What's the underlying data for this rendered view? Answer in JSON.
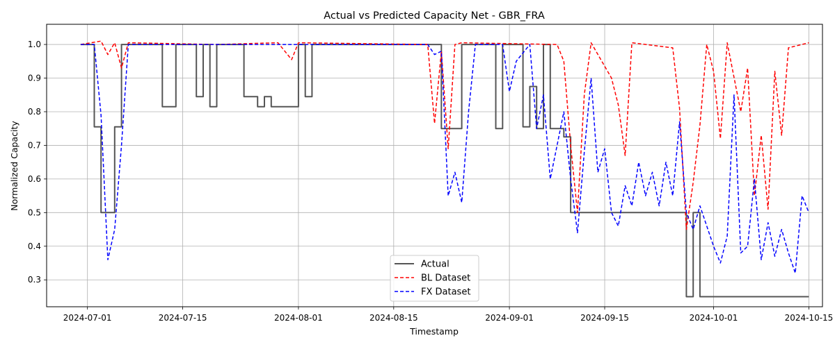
{
  "chart_data": {
    "type": "line",
    "title": "Actual vs Predicted Capacity Net - GBR_FRA",
    "xlabel": "Timestamp",
    "ylabel": "Normalized Capacity",
    "x_type": "date",
    "xlim": [
      "2024-06-25",
      "2024-10-17"
    ],
    "ylim": [
      0.22,
      1.06
    ],
    "x_ticks": [
      "2024-07-01",
      "2024-07-15",
      "2024-08-01",
      "2024-08-15",
      "2024-09-01",
      "2024-09-15",
      "2024-10-01",
      "2024-10-15"
    ],
    "y_ticks": [
      0.3,
      0.4,
      0.5,
      0.6,
      0.7,
      0.8,
      0.9,
      1.0
    ],
    "y_tick_labels": [
      "0.3",
      "0.4",
      "0.5",
      "0.6",
      "0.7",
      "0.8",
      "0.9",
      "1.0"
    ],
    "grid": true,
    "legend_position": "bottom-center",
    "series": [
      {
        "name": "Actual",
        "color": "#555555",
        "style": "solid",
        "step": true,
        "points": [
          [
            "2024-06-30",
            1.0
          ],
          [
            "2024-07-02",
            0.755
          ],
          [
            "2024-07-03",
            0.5
          ],
          [
            "2024-07-04",
            0.5
          ],
          [
            "2024-07-05",
            0.755
          ],
          [
            "2024-07-06",
            1.0
          ],
          [
            "2024-07-12",
            0.815
          ],
          [
            "2024-07-14",
            1.0
          ],
          [
            "2024-07-17",
            0.845
          ],
          [
            "2024-07-18",
            1.0
          ],
          [
            "2024-07-19",
            0.815
          ],
          [
            "2024-07-20",
            1.0
          ],
          [
            "2024-07-24",
            0.845
          ],
          [
            "2024-07-26",
            0.815
          ],
          [
            "2024-07-27",
            0.845
          ],
          [
            "2024-07-28",
            0.815
          ],
          [
            "2024-08-01",
            1.0
          ],
          [
            "2024-08-02",
            0.845
          ],
          [
            "2024-08-03",
            1.0
          ],
          [
            "2024-08-21",
            1.0
          ],
          [
            "2024-08-22",
            0.75
          ],
          [
            "2024-08-25",
            1.0
          ],
          [
            "2024-08-30",
            0.75
          ],
          [
            "2024-08-31",
            1.0
          ],
          [
            "2024-09-03",
            0.755
          ],
          [
            "2024-09-04",
            0.875
          ],
          [
            "2024-09-05",
            0.75
          ],
          [
            "2024-09-06",
            1.0
          ],
          [
            "2024-09-07",
            0.75
          ],
          [
            "2024-09-09",
            0.725
          ],
          [
            "2024-09-10",
            0.5
          ],
          [
            "2024-09-26",
            0.5
          ],
          [
            "2024-09-27",
            0.25
          ],
          [
            "2024-09-28",
            0.5
          ],
          [
            "2024-09-29",
            0.25
          ],
          [
            "2024-10-15",
            0.25
          ]
        ]
      },
      {
        "name": "BL Dataset",
        "color": "#ff0000",
        "style": "dashed",
        "points": [
          [
            "2024-06-30",
            1.0
          ],
          [
            "2024-07-03",
            1.01
          ],
          [
            "2024-07-04",
            0.97
          ],
          [
            "2024-07-05",
            1.005
          ],
          [
            "2024-07-06",
            0.93
          ],
          [
            "2024-07-07",
            1.005
          ],
          [
            "2024-07-20",
            1.0
          ],
          [
            "2024-07-29",
            1.005
          ],
          [
            "2024-07-31",
            0.955
          ],
          [
            "2024-08-01",
            1.005
          ],
          [
            "2024-08-20",
            1.0
          ],
          [
            "2024-08-21",
            0.765
          ],
          [
            "2024-08-22",
            0.98
          ],
          [
            "2024-08-23",
            0.69
          ],
          [
            "2024-08-24",
            1.0
          ],
          [
            "2024-08-25",
            1.005
          ],
          [
            "2024-09-08",
            1.0
          ],
          [
            "2024-09-09",
            0.95
          ],
          [
            "2024-09-10",
            0.7
          ],
          [
            "2024-09-11",
            0.5
          ],
          [
            "2024-09-12",
            0.85
          ],
          [
            "2024-09-13",
            1.005
          ],
          [
            "2024-09-16",
            0.9
          ],
          [
            "2024-09-17",
            0.82
          ],
          [
            "2024-09-18",
            0.67
          ],
          [
            "2024-09-19",
            1.005
          ],
          [
            "2024-09-25",
            0.99
          ],
          [
            "2024-09-26",
            0.81
          ],
          [
            "2024-09-27",
            0.45
          ],
          [
            "2024-09-28",
            0.59
          ],
          [
            "2024-09-29",
            0.76
          ],
          [
            "2024-09-30",
            1.0
          ],
          [
            "2024-10-01",
            0.92
          ],
          [
            "2024-10-02",
            0.72
          ],
          [
            "2024-10-03",
            1.005
          ],
          [
            "2024-10-05",
            0.8
          ],
          [
            "2024-10-06",
            0.93
          ],
          [
            "2024-10-07",
            0.55
          ],
          [
            "2024-10-08",
            0.73
          ],
          [
            "2024-10-09",
            0.51
          ],
          [
            "2024-10-10",
            0.92
          ],
          [
            "2024-10-11",
            0.73
          ],
          [
            "2024-10-12",
            0.99
          ],
          [
            "2024-10-15",
            1.005
          ]
        ]
      },
      {
        "name": "FX Dataset",
        "color": "#0000ff",
        "style": "dashed",
        "points": [
          [
            "2024-06-30",
            1.0
          ],
          [
            "2024-07-02",
            1.0
          ],
          [
            "2024-07-03",
            0.79
          ],
          [
            "2024-07-04",
            0.36
          ],
          [
            "2024-07-05",
            0.45
          ],
          [
            "2024-07-06",
            0.7
          ],
          [
            "2024-07-07",
            1.0
          ],
          [
            "2024-08-20",
            1.0
          ],
          [
            "2024-08-21",
            0.97
          ],
          [
            "2024-08-22",
            0.98
          ],
          [
            "2024-08-23",
            0.55
          ],
          [
            "2024-08-24",
            0.62
          ],
          [
            "2024-08-25",
            0.53
          ],
          [
            "2024-08-26",
            0.8
          ],
          [
            "2024-08-27",
            1.0
          ],
          [
            "2024-08-31",
            1.0
          ],
          [
            "2024-09-01",
            0.86
          ],
          [
            "2024-09-02",
            0.95
          ],
          [
            "2024-09-04",
            1.0
          ],
          [
            "2024-09-05",
            0.75
          ],
          [
            "2024-09-06",
            0.85
          ],
          [
            "2024-09-07",
            0.6
          ],
          [
            "2024-09-08",
            0.7
          ],
          [
            "2024-09-09",
            0.8
          ],
          [
            "2024-09-10",
            0.6
          ],
          [
            "2024-09-11",
            0.44
          ],
          [
            "2024-09-12",
            0.68
          ],
          [
            "2024-09-13",
            0.9
          ],
          [
            "2024-09-14",
            0.62
          ],
          [
            "2024-09-15",
            0.69
          ],
          [
            "2024-09-16",
            0.5
          ],
          [
            "2024-09-17",
            0.46
          ],
          [
            "2024-09-18",
            0.58
          ],
          [
            "2024-09-19",
            0.52
          ],
          [
            "2024-09-20",
            0.65
          ],
          [
            "2024-09-21",
            0.55
          ],
          [
            "2024-09-22",
            0.62
          ],
          [
            "2024-09-23",
            0.52
          ],
          [
            "2024-09-24",
            0.65
          ],
          [
            "2024-09-25",
            0.55
          ],
          [
            "2024-09-26",
            0.77
          ],
          [
            "2024-09-27",
            0.5
          ],
          [
            "2024-09-28",
            0.45
          ],
          [
            "2024-09-29",
            0.52
          ],
          [
            "2024-09-30",
            0.46
          ],
          [
            "2024-10-01",
            0.4
          ],
          [
            "2024-10-02",
            0.35
          ],
          [
            "2024-10-03",
            0.43
          ],
          [
            "2024-10-04",
            0.85
          ],
          [
            "2024-10-05",
            0.38
          ],
          [
            "2024-10-06",
            0.4
          ],
          [
            "2024-10-07",
            0.6
          ],
          [
            "2024-10-08",
            0.36
          ],
          [
            "2024-10-09",
            0.47
          ],
          [
            "2024-10-10",
            0.37
          ],
          [
            "2024-10-11",
            0.45
          ],
          [
            "2024-10-12",
            0.38
          ],
          [
            "2024-10-13",
            0.32
          ],
          [
            "2024-10-14",
            0.55
          ],
          [
            "2024-10-15",
            0.5
          ]
        ]
      }
    ]
  }
}
